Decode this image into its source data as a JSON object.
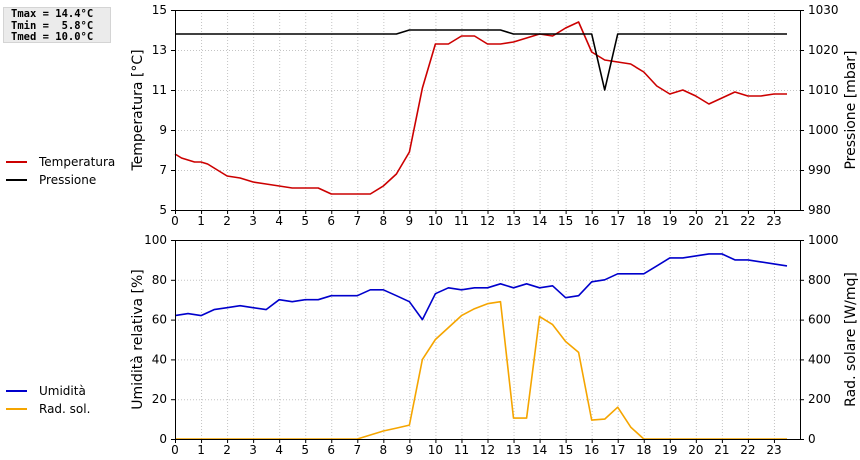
{
  "stats": {
    "tmax": "Tmax = 14.4°C",
    "tmin": "Tmin =  5.8°C",
    "tmed": "Tmed = 10.0°C"
  },
  "chart_data": [
    {
      "type": "line",
      "xlabel": "",
      "xlim": [
        0,
        24
      ],
      "xticks": [
        "0",
        "1",
        "2",
        "3",
        "4",
        "5",
        "6",
        "7",
        "8",
        "9",
        "10",
        "11",
        "12",
        "13",
        "14",
        "15",
        "16",
        "17",
        "18",
        "19",
        "20",
        "21",
        "22",
        "23"
      ],
      "ylabel": "Temperatura [°C]",
      "ylim": [
        5,
        15
      ],
      "yticks": [
        "5",
        "7",
        "9",
        "11",
        "13",
        "15"
      ],
      "y2label": "Pressione [mbar]",
      "y2lim": [
        980,
        1030
      ],
      "y2ticks": [
        "980",
        "990",
        "1000",
        "1010",
        "1020",
        "1030"
      ],
      "grid": true,
      "legend_position": "left",
      "series": [
        {
          "name": "Temperatura",
          "color": "#cc0000",
          "axis": "left",
          "x": [
            0,
            0.25,
            0.5,
            0.75,
            1,
            1.25,
            1.5,
            2,
            2.5,
            3,
            3.5,
            4,
            4.5,
            5,
            5.5,
            6,
            6.5,
            7,
            7.5,
            8,
            8.5,
            9,
            9.5,
            10,
            10.5,
            11,
            11.5,
            12,
            12.5,
            13,
            13.5,
            14,
            14.5,
            15,
            15.5,
            16,
            16.5,
            17,
            17.5,
            18,
            18.5,
            19,
            19.5,
            20,
            20.5,
            21,
            21.5,
            22,
            22.5,
            23,
            23.5
          ],
          "y": [
            7.8,
            7.6,
            7.5,
            7.4,
            7.4,
            7.3,
            7.1,
            6.7,
            6.6,
            6.4,
            6.3,
            6.2,
            6.1,
            6.1,
            6.1,
            5.8,
            5.8,
            5.8,
            5.8,
            6.2,
            6.8,
            7.9,
            11.1,
            13.3,
            13.3,
            13.7,
            13.7,
            13.3,
            13.3,
            13.4,
            13.6,
            13.8,
            13.7,
            14.1,
            14.4,
            12.9,
            12.5,
            12.4,
            12.3,
            11.9,
            11.2,
            10.8,
            11.0,
            10.7,
            10.3,
            10.6,
            10.9,
            10.7,
            10.7,
            10.8,
            10.8
          ]
        },
        {
          "name": "Pressione",
          "color": "#000000",
          "axis": "right",
          "x": [
            0,
            8.5,
            9,
            12.5,
            13,
            15.5,
            16,
            16.5,
            17,
            23.5
          ],
          "y": [
            1024,
            1024,
            1025,
            1025,
            1024,
            1024,
            1024,
            1010,
            1024,
            1024
          ]
        }
      ]
    },
    {
      "type": "line",
      "xlabel": "",
      "xlim": [
        0,
        24
      ],
      "xticks": [
        "0",
        "1",
        "2",
        "3",
        "4",
        "5",
        "6",
        "7",
        "8",
        "9",
        "10",
        "11",
        "12",
        "13",
        "14",
        "15",
        "16",
        "17",
        "18",
        "19",
        "20",
        "21",
        "22",
        "23"
      ],
      "ylabel": "Umidità relativa [%]",
      "ylim": [
        0,
        100
      ],
      "yticks": [
        "0",
        "20",
        "40",
        "60",
        "80",
        "100"
      ],
      "y2label": "Rad. solare [W/mq]",
      "y2lim": [
        0,
        1000
      ],
      "y2ticks": [
        "0",
        "200",
        "400",
        "600",
        "800",
        "1000"
      ],
      "grid": true,
      "legend_position": "left",
      "series": [
        {
          "name": "Umidità",
          "color": "#0000cc",
          "axis": "left",
          "x": [
            0,
            0.5,
            1,
            1.5,
            2,
            2.5,
            3,
            3.5,
            4,
            4.5,
            5,
            5.5,
            6,
            6.5,
            7,
            7.5,
            8,
            8.5,
            9,
            9.5,
            10,
            10.5,
            11,
            11.5,
            12,
            12.5,
            13,
            13.5,
            14,
            14.5,
            15,
            15.5,
            16,
            16.5,
            17,
            17.5,
            18,
            18.5,
            19,
            19.5,
            20,
            20.5,
            21,
            21.5,
            22,
            22.5,
            23,
            23.5
          ],
          "y": [
            62,
            63,
            62,
            65,
            66,
            67,
            66,
            65,
            70,
            69,
            70,
            70,
            72,
            72,
            72,
            75,
            75,
            72,
            69,
            60,
            73,
            76,
            75,
            76,
            76,
            78,
            76,
            78,
            76,
            77,
            71,
            72,
            79,
            80,
            83,
            83,
            83,
            87,
            91,
            91,
            92,
            93,
            93,
            90,
            90,
            89,
            88,
            87
          ]
        },
        {
          "name": "Rad. sol.",
          "color": "#f5a500",
          "axis": "right",
          "x": [
            0,
            7,
            7.5,
            8,
            8.5,
            9,
            9.5,
            10,
            10.5,
            11,
            11.5,
            12,
            12.5,
            13,
            13.5,
            14,
            14.5,
            15,
            15.5,
            16,
            16.5,
            17,
            17.5,
            18,
            23.5
          ],
          "y": [
            0,
            0,
            20,
            40,
            55,
            70,
            400,
            500,
            560,
            620,
            655,
            680,
            690,
            105,
            105,
            615,
            575,
            490,
            435,
            95,
            100,
            160,
            60,
            0,
            0
          ]
        }
      ]
    }
  ]
}
